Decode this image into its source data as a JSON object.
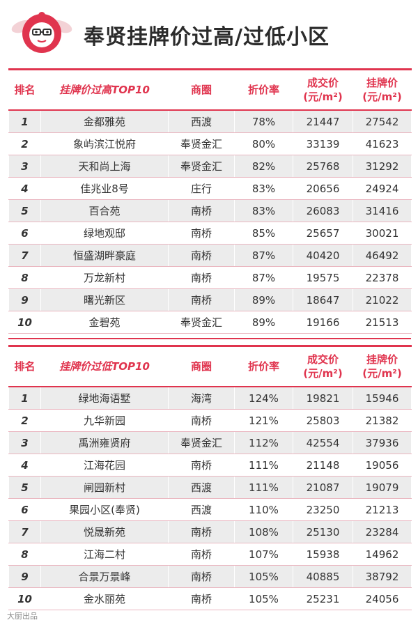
{
  "page": {
    "title": "奉贤挂牌价过高/过低小区"
  },
  "high_table": {
    "headers": {
      "rank": "排名",
      "name": "挂牌价过高TOP10",
      "area": "商圈",
      "discount": "折价率",
      "deal_price": "成交价",
      "deal_unit": "(元/m²)",
      "list_price": "挂牌价",
      "list_unit": "(元/m²)"
    },
    "rows": [
      {
        "rank": "1",
        "name": "金都雅苑",
        "area": "西渡",
        "discount": "78%",
        "deal": "21447",
        "list": "27542"
      },
      {
        "rank": "2",
        "name": "象屿滨江悦府",
        "area": "奉贤金汇",
        "discount": "80%",
        "deal": "33139",
        "list": "41623"
      },
      {
        "rank": "3",
        "name": "天和尚上海",
        "area": "奉贤金汇",
        "discount": "82%",
        "deal": "25768",
        "list": "31292"
      },
      {
        "rank": "4",
        "name": "佳兆业8号",
        "area": "庄行",
        "discount": "83%",
        "deal": "20656",
        "list": "24924"
      },
      {
        "rank": "5",
        "name": "百合苑",
        "area": "南桥",
        "discount": "83%",
        "deal": "26083",
        "list": "31416"
      },
      {
        "rank": "6",
        "name": "绿地观邸",
        "area": "南桥",
        "discount": "85%",
        "deal": "25657",
        "list": "30021"
      },
      {
        "rank": "7",
        "name": "恒盛湖畔豪庭",
        "area": "南桥",
        "discount": "87%",
        "deal": "40420",
        "list": "46492"
      },
      {
        "rank": "8",
        "name": "万龙新村",
        "area": "南桥",
        "discount": "87%",
        "deal": "19575",
        "list": "22378"
      },
      {
        "rank": "9",
        "name": "曙光新区",
        "area": "南桥",
        "discount": "89%",
        "deal": "18647",
        "list": "21022"
      },
      {
        "rank": "10",
        "name": "金碧苑",
        "area": "奉贤金汇",
        "discount": "89%",
        "deal": "19166",
        "list": "21513"
      }
    ]
  },
  "low_table": {
    "headers": {
      "rank": "排名",
      "name": "挂牌价过低TOP10",
      "area": "商圈",
      "discount": "折价率",
      "deal_price": "成交价",
      "deal_unit": "(元/m²)",
      "list_price": "挂牌价",
      "list_unit": "(元/m²)"
    },
    "rows": [
      {
        "rank": "1",
        "name": "绿地海语墅",
        "area": "海湾",
        "discount": "124%",
        "deal": "19821",
        "list": "15946"
      },
      {
        "rank": "2",
        "name": "九华新园",
        "area": "南桥",
        "discount": "121%",
        "deal": "25803",
        "list": "21382"
      },
      {
        "rank": "3",
        "name": "禹洲雍贤府",
        "area": "奉贤金汇",
        "discount": "112%",
        "deal": "42554",
        "list": "37936"
      },
      {
        "rank": "4",
        "name": "江海花园",
        "area": "南桥",
        "discount": "111%",
        "deal": "21148",
        "list": "19056"
      },
      {
        "rank": "5",
        "name": "闸园新村",
        "area": "西渡",
        "discount": "111%",
        "deal": "21087",
        "list": "19079"
      },
      {
        "rank": "6",
        "name": "果园小区(奉贤)",
        "area": "西渡",
        "discount": "110%",
        "deal": "23250",
        "list": "21213"
      },
      {
        "rank": "7",
        "name": "悦晟新苑",
        "area": "南桥",
        "discount": "108%",
        "deal": "25130",
        "list": "23284"
      },
      {
        "rank": "8",
        "name": "江海二村",
        "area": "南桥",
        "discount": "107%",
        "deal": "15938",
        "list": "14962"
      },
      {
        "rank": "9",
        "name": "合景万景峰",
        "area": "南桥",
        "discount": "105%",
        "deal": "40885",
        "list": "38792"
      },
      {
        "rank": "10",
        "name": "金水丽苑",
        "area": "南桥",
        "discount": "105%",
        "deal": "25231",
        "list": "24056"
      }
    ]
  },
  "watermark": "大厨出品",
  "colors": {
    "accent": "#e0344e",
    "row_shade": "#ececec",
    "title_text": "#2b2b2b"
  },
  "icons": {
    "logo": "mascot-logo-icon"
  }
}
